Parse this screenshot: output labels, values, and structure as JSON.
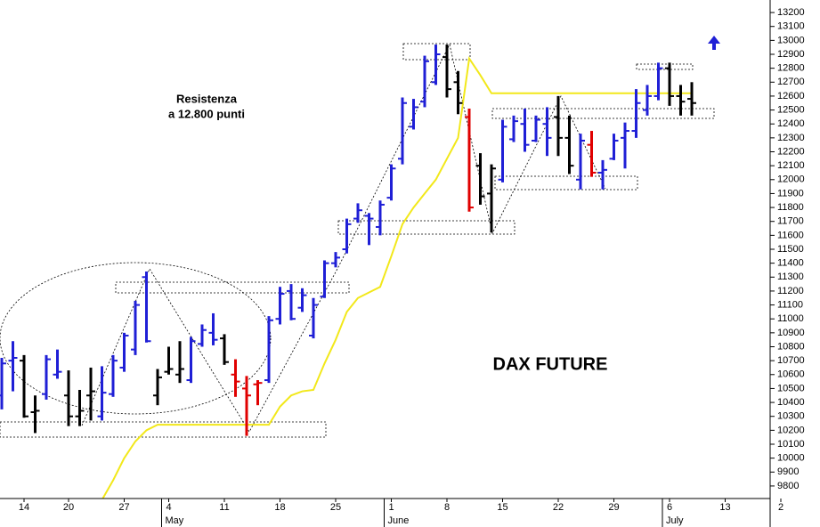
{
  "chart_data": {
    "type": "ohlc",
    "title": "DAX FUTURE",
    "annotations": [
      "Resistenza",
      "a 12.800 punti"
    ],
    "categories": [
      null,
      null,
      "14",
      null,
      null,
      null,
      "20",
      null,
      null,
      null,
      null,
      "27",
      null,
      null,
      null,
      "4",
      null,
      null,
      null,
      null,
      "11",
      null,
      null,
      null,
      null,
      "18",
      null,
      null,
      null,
      null,
      "25",
      null,
      null,
      null,
      null,
      "1",
      null,
      null,
      null,
      null,
      "8",
      null,
      null,
      null,
      null,
      "15",
      null,
      null,
      null,
      null,
      "22",
      null,
      null,
      null,
      null,
      "29",
      null,
      null,
      null,
      null,
      "6",
      null,
      null,
      null,
      null,
      "13",
      null,
      null,
      null,
      null,
      "2"
    ],
    "months": [
      null,
      null,
      null,
      null,
      null,
      null,
      null,
      null,
      null,
      null,
      null,
      null,
      null,
      null,
      null,
      "May",
      null,
      null,
      null,
      null,
      null,
      null,
      null,
      null,
      null,
      null,
      null,
      null,
      null,
      null,
      null,
      null,
      null,
      null,
      null,
      "June",
      null,
      null,
      null,
      null,
      null,
      null,
      null,
      null,
      null,
      null,
      null,
      null,
      null,
      null,
      null,
      null,
      null,
      null,
      null,
      null,
      null,
      null,
      null,
      null,
      "July",
      null,
      null,
      null,
      null,
      null,
      null,
      null,
      null,
      null,
      null
    ],
    "open": [
      10450,
      10700,
      10700,
      10330,
      10460,
      10600,
      10450,
      10300,
      10450,
      10300,
      10460,
      10650,
      10780,
      11300,
      10450,
      10620,
      10600,
      10560,
      10820,
      10900,
      10860,
      10600,
      10500,
      10530,
      10560,
      11000,
      11200,
      11080,
      10880,
      11160,
      11400,
      11500,
      11720,
      11740,
      11660,
      11870,
      12150,
      12380,
      12560,
      12700,
      12880,
      12700,
      12450,
      12100,
      11900,
      12000,
      12290,
      12400,
      12280,
      12400,
      12450,
      12300,
      12000,
      12250,
      12050,
      12150,
      12300,
      12350,
      12500,
      12600,
      12800,
      12600,
      12580,
      null,
      null,
      null,
      null,
      null,
      null,
      null,
      null
    ],
    "high": [
      10720,
      10840,
      10740,
      10450,
      10740,
      10780,
      10630,
      10490,
      10650,
      10660,
      10740,
      10900,
      11130,
      11340,
      10640,
      10800,
      10840,
      10870,
      10960,
      11040,
      10890,
      10710,
      10590,
      10560,
      11020,
      11230,
      11250,
      11220,
      11150,
      11420,
      11480,
      11720,
      11830,
      11760,
      11850,
      12110,
      12590,
      12580,
      12890,
      12970,
      12970,
      12780,
      12510,
      12190,
      12110,
      12430,
      12460,
      12510,
      12460,
      12520,
      12600,
      12460,
      12330,
      12350,
      12140,
      12330,
      12410,
      12650,
      12680,
      12840,
      12840,
      12680,
      12700,
      null,
      null,
      null,
      null,
      null,
      null,
      null,
      null
    ],
    "low": [
      10350,
      10480,
      10290,
      10180,
      10420,
      10570,
      10230,
      10230,
      10270,
      10270,
      10440,
      10620,
      10740,
      10830,
      10380,
      10600,
      10540,
      10540,
      10800,
      10810,
      10670,
      10440,
      10160,
      10380,
      10540,
      10960,
      10990,
      11050,
      10860,
      11150,
      11370,
      11470,
      11690,
      11530,
      11600,
      11850,
      12110,
      12360,
      12520,
      12680,
      12590,
      12470,
      11770,
      11820,
      11620,
      11980,
      12270,
      12200,
      12270,
      12170,
      12170,
      12040,
      11930,
      12020,
      11930,
      12140,
      12080,
      12300,
      12460,
      12570,
      12530,
      12460,
      12460,
      null,
      null,
      null,
      null,
      null,
      null,
      null,
      null
    ],
    "close": [
      10680,
      10720,
      10300,
      10340,
      10710,
      10620,
      10300,
      10340,
      10480,
      10470,
      10700,
      10880,
      11100,
      10840,
      10580,
      10640,
      10640,
      10840,
      10920,
      10850,
      10690,
      10550,
      10450,
      10540,
      10990,
      11180,
      11000,
      11170,
      11100,
      11400,
      11440,
      11680,
      11780,
      11720,
      11820,
      12080,
      12550,
      12520,
      12850,
      12900,
      12650,
      12550,
      11800,
      11880,
      12080,
      12380,
      12420,
      12250,
      12430,
      12300,
      12300,
      12100,
      12280,
      12050,
      12070,
      12280,
      12350,
      12550,
      12600,
      12800,
      12600,
      12560,
      12550,
      null,
      null,
      null,
      null,
      null,
      null,
      null,
      null
    ],
    "bar_colors": [
      "#1f1fd6",
      "#1f1fd6",
      "#000000",
      "#000000",
      "#1f1fd6",
      "#1f1fd6",
      "#000000",
      "#000000",
      "#000000",
      "#1f1fd6",
      "#1f1fd6",
      "#1f1fd6",
      "#1f1fd6",
      "#1f1fd6",
      "#000000",
      "#000000",
      "#000000",
      "#1f1fd6",
      "#1f1fd6",
      "#1f1fd6",
      "#000000",
      "#e00000",
      "#e00000",
      "#e00000",
      "#1f1fd6",
      "#1f1fd6",
      "#1f1fd6",
      "#1f1fd6",
      "#1f1fd6",
      "#1f1fd6",
      "#1f1fd6",
      "#1f1fd6",
      "#1f1fd6",
      "#1f1fd6",
      "#1f1fd6",
      "#1f1fd6",
      "#1f1fd6",
      "#1f1fd6",
      "#1f1fd6",
      "#1f1fd6",
      "#000000",
      "#000000",
      "#e00000",
      "#000000",
      "#000000",
      "#1f1fd6",
      "#1f1fd6",
      "#1f1fd6",
      "#1f1fd6",
      "#1f1fd6",
      "#000000",
      "#000000",
      "#1f1fd6",
      "#e00000",
      "#1f1fd6",
      "#1f1fd6",
      "#1f1fd6",
      "#1f1fd6",
      "#1f1fd6",
      "#1f1fd6",
      "#000000",
      "#000000",
      "#000000",
      null,
      null,
      null,
      null,
      null,
      null,
      null,
      null
    ],
    "line": {
      "color": "#f2e81a",
      "values": [
        null,
        null,
        null,
        null,
        null,
        null,
        null,
        null,
        null,
        9700,
        9840,
        10000,
        10120,
        10200,
        10240,
        10240,
        10240,
        10240,
        10240,
        10240,
        10240,
        10240,
        10240,
        10240,
        10240,
        10370,
        10450,
        10480,
        10490,
        10680,
        10850,
        11050,
        11150,
        11190,
        11230,
        11450,
        11680,
        11800,
        11900,
        12000,
        12150,
        12300,
        12870,
        12750,
        12620,
        12620,
        12620,
        12620,
        12620,
        12620,
        12620,
        12620,
        12620,
        12620,
        12620,
        12620,
        12620,
        12620,
        12620,
        12620,
        12620,
        12620,
        12620,
        null,
        null,
        null,
        null,
        null,
        null,
        null,
        null
      ]
    },
    "ylim": [
      9710,
      13290
    ],
    "yticks": [
      9800,
      9900,
      10000,
      10100,
      10200,
      10300,
      10400,
      10500,
      10600,
      10700,
      10800,
      10900,
      11000,
      11100,
      11200,
      11300,
      11400,
      11500,
      11600,
      11700,
      11800,
      11900,
      12000,
      12100,
      12200,
      12300,
      12400,
      12500,
      12600,
      12700,
      12800,
      12900,
      13000,
      13100,
      13200
    ],
    "y_axis_side": "right",
    "grid": false
  }
}
